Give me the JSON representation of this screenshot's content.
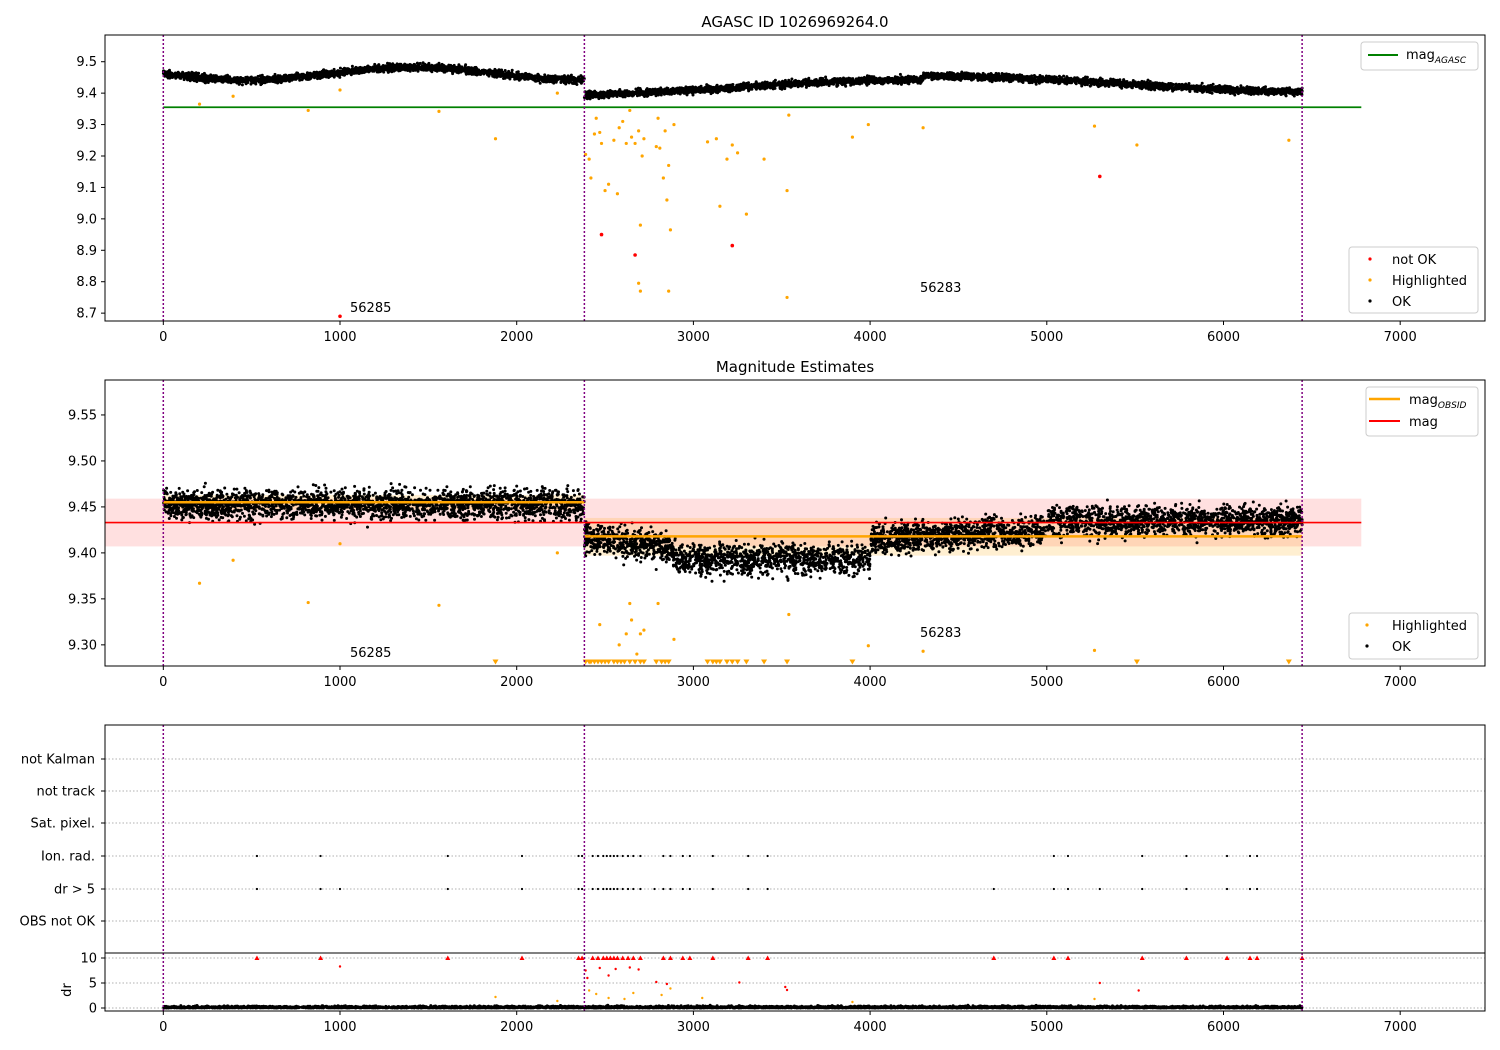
{
  "chart_data": [
    {
      "type": "scatter",
      "title": "AGASC ID 1026969264.0",
      "xlabel": "",
      "ylabel": "",
      "xlim": [
        -330,
        7480
      ],
      "ylim": [
        8.675,
        9.585
      ],
      "xticks": [
        0,
        1000,
        2000,
        3000,
        4000,
        5000,
        6000,
        7000
      ],
      "yticks": [
        8.7,
        8.8,
        8.9,
        9.0,
        9.1,
        9.2,
        9.3,
        9.4,
        9.5
      ],
      "ytick_labels": [
        "8.7",
        "8.8",
        "8.9",
        "9.0",
        "9.1",
        "9.2",
        "9.3",
        "9.4",
        "9.5"
      ],
      "vlines": [
        0,
        2383,
        6445
      ],
      "hlines": [
        {
          "name": "mag",
          "sub": "AGASC",
          "y": 9.355,
          "x0": 0,
          "x1": 6780,
          "color": "#008000"
        }
      ],
      "segments": [
        {
          "x0": 0,
          "x1": 2383,
          "level": 9.462,
          "drop_to": 9.43
        },
        {
          "x0": 2383,
          "x1": 6445,
          "level": 9.418,
          "drop_to": null
        }
      ],
      "annotations": [
        {
          "text": "56285",
          "x": 1060,
          "y": 8.7
        },
        {
          "text": "56283",
          "x": 4280,
          "y": 8.77
        }
      ],
      "highlighted": [
        [
          205,
          9.365
        ],
        [
          395,
          9.39
        ],
        [
          820,
          9.345
        ],
        [
          1000,
          9.41
        ],
        [
          1560,
          9.342
        ],
        [
          1880,
          9.255
        ],
        [
          2230,
          9.4
        ],
        [
          2390,
          9.205
        ],
        [
          2410,
          9.19
        ],
        [
          2420,
          9.13
        ],
        [
          2440,
          9.27
        ],
        [
          2450,
          9.32
        ],
        [
          2470,
          9.275
        ],
        [
          2480,
          9.24
        ],
        [
          2500,
          9.09
        ],
        [
          2520,
          9.11
        ],
        [
          2550,
          9.25
        ],
        [
          2570,
          9.08
        ],
        [
          2580,
          9.29
        ],
        [
          2600,
          9.31
        ],
        [
          2620,
          9.24
        ],
        [
          2640,
          9.345
        ],
        [
          2650,
          9.26
        ],
        [
          2670,
          9.24
        ],
        [
          2690,
          9.28
        ],
        [
          2700,
          8.98
        ],
        [
          2710,
          9.2
        ],
        [
          2720,
          9.255
        ],
        [
          2790,
          9.23
        ],
        [
          2800,
          9.32
        ],
        [
          2810,
          9.225
        ],
        [
          2830,
          9.13
        ],
        [
          2840,
          9.28
        ],
        [
          2850,
          9.06
        ],
        [
          2860,
          9.17
        ],
        [
          2870,
          8.965
        ],
        [
          2890,
          9.3
        ],
        [
          3080,
          9.245
        ],
        [
          3130,
          9.255
        ],
        [
          3150,
          9.04
        ],
        [
          3190,
          9.19
        ],
        [
          3220,
          9.235
        ],
        [
          3250,
          9.21
        ],
        [
          3300,
          9.015
        ],
        [
          3400,
          9.19
        ],
        [
          3530,
          9.09
        ],
        [
          3540,
          9.33
        ],
        [
          3900,
          9.26
        ],
        [
          3990,
          9.3
        ],
        [
          4300,
          9.29
        ],
        [
          5270,
          9.295
        ],
        [
          5510,
          9.235
        ],
        [
          6370,
          9.25
        ],
        [
          2700,
          8.77
        ],
        [
          2860,
          8.77
        ],
        [
          2690,
          8.795
        ],
        [
          3530,
          8.75
        ]
      ],
      "not_ok": [
        [
          1000,
          8.69
        ],
        [
          2480,
          8.95
        ],
        [
          2670,
          8.885
        ],
        [
          3220,
          8.915
        ],
        [
          5300,
          9.135
        ]
      ],
      "legend": [
        "not OK",
        "Highlighted",
        "OK"
      ]
    },
    {
      "type": "scatter",
      "title": "Magnitude Estimates",
      "xlabel": "",
      "ylabel": "",
      "xlim": [
        -330,
        7480
      ],
      "ylim": [
        9.277,
        9.588
      ],
      "xticks": [
        0,
        1000,
        2000,
        3000,
        4000,
        5000,
        6000,
        7000
      ],
      "yticks": [
        9.3,
        9.35,
        9.4,
        9.45,
        9.5,
        9.55
      ],
      "ytick_labels": [
        "9.30",
        "9.35",
        "9.40",
        "9.45",
        "9.50",
        "9.55"
      ],
      "vlines": [
        0,
        2383,
        6445
      ],
      "mag": {
        "value": 9.433,
        "band": [
          9.407,
          9.459
        ],
        "x0": -330,
        "x1": 6780
      },
      "mag_obsid": [
        {
          "x0": 0,
          "x1": 2383,
          "value": 9.455,
          "band": [
            9.447,
            9.463
          ]
        },
        {
          "x0": 2383,
          "x1": 6445,
          "value": 9.418,
          "band": [
            9.397,
            9.438
          ]
        }
      ],
      "segments": [
        {
          "x0": 0,
          "x1": 2383,
          "level": 9.453
        },
        {
          "x0": 2383,
          "x1": 2900,
          "level": 9.418
        },
        {
          "x0": 2900,
          "x1": 4000,
          "level": 9.393
        },
        {
          "x0": 4000,
          "x1": 5000,
          "level": 9.42
        },
        {
          "x0": 5000,
          "x1": 6445,
          "level": 9.435
        }
      ],
      "annotations": [
        {
          "text": "56285",
          "x": 1060,
          "y": 9.287
        },
        {
          "text": "56283",
          "x": 4280,
          "y": 9.311
        }
      ],
      "highlighted": [
        [
          205,
          9.367
        ],
        [
          395,
          9.392
        ],
        [
          820,
          9.346
        ],
        [
          1000,
          9.41
        ],
        [
          1560,
          9.343
        ],
        [
          2230,
          9.4
        ],
        [
          2470,
          9.322
        ],
        [
          2580,
          9.3
        ],
        [
          2620,
          9.312
        ],
        [
          2640,
          9.345
        ],
        [
          2650,
          9.327
        ],
        [
          2680,
          9.29
        ],
        [
          2700,
          9.312
        ],
        [
          2720,
          9.316
        ],
        [
          2800,
          9.345
        ],
        [
          2890,
          9.306
        ],
        [
          3540,
          9.333
        ],
        [
          3990,
          9.299
        ],
        [
          4300,
          9.293
        ],
        [
          5270,
          9.294
        ]
      ],
      "offscale": [
        1880,
        2390,
        2410,
        2420,
        2440,
        2460,
        2480,
        2500,
        2520,
        2550,
        2570,
        2590,
        2610,
        2640,
        2670,
        2700,
        2720,
        2790,
        2820,
        2840,
        2860,
        3080,
        3110,
        3130,
        3150,
        3190,
        3220,
        3250,
        3300,
        3400,
        3530,
        3900,
        5510,
        6370
      ],
      "legend": [
        "Highlighted",
        "OK"
      ]
    },
    {
      "type": "scatter",
      "title": "",
      "xlabel": "",
      "ylabel": "",
      "xlim": [
        -330,
        7480
      ],
      "xticks": [
        0,
        1000,
        2000,
        3000,
        4000,
        5000,
        6000,
        7000
      ],
      "vlines": [
        0,
        2383,
        6445
      ],
      "flag_rows": [
        "not Kalman",
        "not track",
        "Sat. pixel.",
        "Ion. rad.",
        "dr > 5",
        "OBS not OK"
      ],
      "flags": {
        "Ion. rad.": [
          530,
          890,
          1610,
          2030,
          2350,
          2370,
          2430,
          2460,
          2490,
          2510,
          2530,
          2550,
          2570,
          2600,
          2630,
          2660,
          2700,
          2830,
          2870,
          2940,
          2980,
          3110,
          3310,
          3420,
          5040,
          5120,
          5540,
          5790,
          6020,
          6150,
          6190
        ],
        "dr > 5": [
          530,
          890,
          1000,
          1610,
          2030,
          2350,
          2370,
          2430,
          2460,
          2490,
          2510,
          2530,
          2550,
          2570,
          2600,
          2630,
          2660,
          2700,
          2780,
          2830,
          2870,
          2940,
          2980,
          3110,
          3310,
          3420,
          4700,
          5040,
          5120,
          5300,
          5540,
          5790,
          6020,
          6150,
          6190
        ]
      },
      "dr_panel": {
        "ylabel": "dr",
        "ylim": [
          -0.6,
          10.6
        ],
        "yticks": [
          0,
          5,
          10
        ],
        "ytick_labels": [
          "0",
          "5",
          "10"
        ],
        "capped": [
          530,
          890,
          1610,
          2030,
          2350,
          2370,
          2430,
          2460,
          2490,
          2510,
          2530,
          2550,
          2570,
          2600,
          2630,
          2660,
          2700,
          2830,
          2870,
          2940,
          2980,
          3110,
          3310,
          3420,
          4700,
          5040,
          5120,
          5540,
          5790,
          6020,
          6150,
          6190,
          6445
        ],
        "red_points": [
          [
            1000,
            8.3
          ],
          [
            2390,
            7.5
          ],
          [
            2400,
            6.0
          ],
          [
            2470,
            8.0
          ],
          [
            2520,
            6.5
          ],
          [
            2560,
            7.8
          ],
          [
            2640,
            8.1
          ],
          [
            2690,
            7.7
          ],
          [
            2790,
            5.2
          ],
          [
            2850,
            4.8
          ],
          [
            3260,
            5.1
          ],
          [
            5300,
            5.0
          ],
          [
            5520,
            3.5
          ],
          [
            3530,
            3.6
          ],
          [
            3520,
            4.2
          ]
        ],
        "orange_points": [
          [
            2410,
            3.5
          ],
          [
            2450,
            2.8
          ],
          [
            2520,
            2.0
          ],
          [
            2610,
            1.8
          ],
          [
            2660,
            3.0
          ],
          [
            2820,
            2.6
          ],
          [
            2870,
            3.9
          ],
          [
            1880,
            2.2
          ],
          [
            2230,
            1.4
          ],
          [
            3050,
            2.0
          ],
          [
            3900,
            1.2
          ],
          [
            5270,
            1.8
          ]
        ]
      }
    }
  ]
}
